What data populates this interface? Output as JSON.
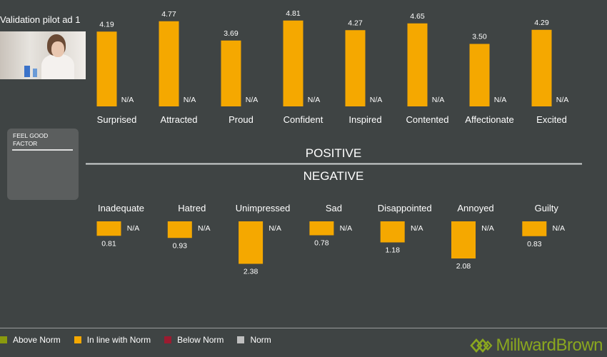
{
  "ad_title": "Validation pilot ad 1",
  "feel_good_factor_label": "FEEL GOOD FACTOR",
  "positive_label": "POSITIVE",
  "negative_label": "NEGATIVE",
  "colors": {
    "background": "#3f4444",
    "above_norm": "#8a9a0e",
    "in_line_with_norm": "#f5a800",
    "below_norm": "#9b1b30",
    "norm": "#bfbfbf",
    "brand": "#8aa71f"
  },
  "legend": [
    {
      "label": "Above Norm",
      "color": "#8a9a0e"
    },
    {
      "label": "In line with Norm",
      "color": "#f5a800"
    },
    {
      "label": "Below Norm",
      "color": "#9b1b30"
    },
    {
      "label": "Norm",
      "color": "#bfbfbf"
    }
  ],
  "brand": {
    "part1": "Millward",
    "part2": "Brown",
    "icon": "millward-brown-logo-icon"
  },
  "chart_data": [
    {
      "type": "bar",
      "group": "POSITIVE",
      "categories": [
        "Surprised",
        "Attracted",
        "Proud",
        "Confident",
        "Inspired",
        "Contented",
        "Affectionate",
        "Excited"
      ],
      "series": [
        {
          "name": "In line with Norm",
          "values": [
            4.19,
            4.77,
            3.69,
            4.81,
            4.27,
            4.65,
            3.5,
            4.29
          ],
          "labels": [
            "4.19",
            "4.77",
            "3.69",
            "4.81",
            "4.27",
            "4.65",
            "3.50",
            "4.29"
          ]
        },
        {
          "name": "Norm",
          "values": [
            null,
            null,
            null,
            null,
            null,
            null,
            null,
            null
          ],
          "labels": [
            "N/A",
            "N/A",
            "N/A",
            "N/A",
            "N/A",
            "N/A",
            "N/A",
            "N/A"
          ]
        }
      ],
      "ylim": [
        0,
        5
      ]
    },
    {
      "type": "bar",
      "group": "NEGATIVE",
      "categories": [
        "Inadequate",
        "Hatred",
        "Unimpressed",
        "Sad",
        "Disappointed",
        "Annoyed",
        "Guilty"
      ],
      "series": [
        {
          "name": "In line with Norm",
          "values": [
            0.81,
            0.93,
            2.38,
            0.78,
            1.18,
            2.08,
            0.83
          ],
          "labels": [
            "0.81",
            "0.93",
            "2.38",
            "0.78",
            "1.18",
            "2.08",
            "0.83"
          ]
        },
        {
          "name": "Norm",
          "values": [
            null,
            null,
            null,
            null,
            null,
            null,
            null
          ],
          "labels": [
            "N/A",
            "N/A",
            "N/A",
            "N/A",
            "N/A",
            "N/A",
            "N/A"
          ]
        }
      ],
      "ylim": [
        0,
        5
      ],
      "direction": "downward"
    }
  ]
}
